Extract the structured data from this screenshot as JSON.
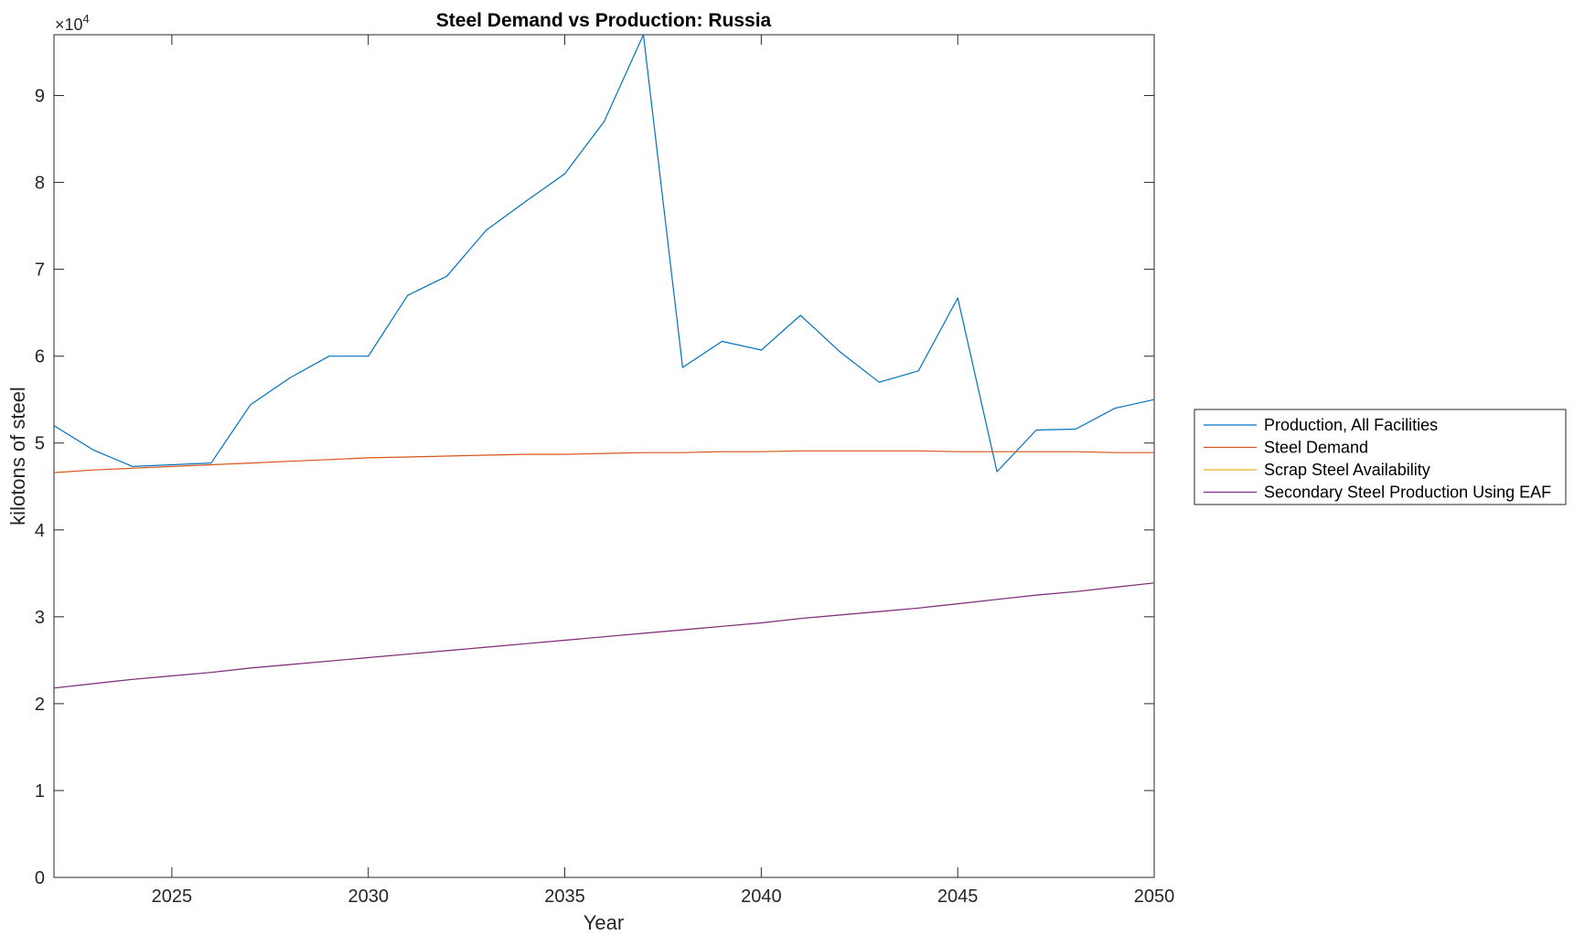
{
  "chart_data": {
    "type": "line",
    "title": "Steel Demand vs Production: Russia",
    "xlabel": "Year",
    "ylabel": "kilotons of steel",
    "y_exponent_label": "×10",
    "y_exponent_power": "4",
    "xlim": [
      2022,
      2050
    ],
    "ylim": [
      0,
      9.7
    ],
    "y_multiplier": 10000,
    "xticks": [
      2025,
      2030,
      2035,
      2040,
      2045,
      2050
    ],
    "xtick_labels": [
      "2025",
      "2030",
      "2035",
      "2040",
      "2045",
      "2050"
    ],
    "yticks": [
      0,
      1,
      2,
      3,
      4,
      5,
      6,
      7,
      8,
      9
    ],
    "ytick_labels": [
      "0",
      "1",
      "2",
      "3",
      "4",
      "5",
      "6",
      "7",
      "8",
      "9"
    ],
    "grid": false,
    "legend_position": "outside-right",
    "x": [
      2022,
      2023,
      2024,
      2025,
      2026,
      2027,
      2028,
      2029,
      2030,
      2031,
      2032,
      2033,
      2034,
      2035,
      2036,
      2037,
      2038,
      2039,
      2040,
      2041,
      2042,
      2043,
      2044,
      2045,
      2046,
      2047,
      2048,
      2049,
      2050
    ],
    "series": [
      {
        "name": "Production, All Facilities",
        "color": "#0072BD",
        "values": [
          5.2,
          4.92,
          4.73,
          4.75,
          4.77,
          5.44,
          5.75,
          6.0,
          6.0,
          6.7,
          6.92,
          7.45,
          7.78,
          8.1,
          8.7,
          9.7,
          5.87,
          6.17,
          6.07,
          6.47,
          6.05,
          5.7,
          5.83,
          6.67,
          4.67,
          5.15,
          5.16,
          5.4,
          5.5
        ]
      },
      {
        "name": "Steel Demand",
        "color": "#D95319",
        "values": [
          4.66,
          4.69,
          4.71,
          4.73,
          4.75,
          4.77,
          4.79,
          4.81,
          4.83,
          4.84,
          4.85,
          4.86,
          4.87,
          4.87,
          4.88,
          4.89,
          4.89,
          4.9,
          4.9,
          4.91,
          4.91,
          4.91,
          4.91,
          4.9,
          4.9,
          4.9,
          4.9,
          4.89,
          4.89
        ]
      },
      {
        "name": "Scrap Steel Availability",
        "color": "#EDB120",
        "values": [
          2.18,
          2.23,
          2.28,
          2.32,
          2.36,
          2.41,
          2.45,
          2.49,
          2.53,
          2.57,
          2.61,
          2.65,
          2.69,
          2.73,
          2.77,
          2.81,
          2.85,
          2.89,
          2.93,
          2.98,
          3.02,
          3.06,
          3.1,
          3.15,
          3.2,
          3.25,
          3.29,
          3.34,
          3.39
        ]
      },
      {
        "name": "Secondary Steel Production Using EAF",
        "color": "#7E2F8E",
        "values": [
          2.18,
          2.23,
          2.28,
          2.32,
          2.36,
          2.41,
          2.45,
          2.49,
          2.53,
          2.57,
          2.61,
          2.65,
          2.69,
          2.73,
          2.77,
          2.81,
          2.85,
          2.89,
          2.93,
          2.98,
          3.02,
          3.06,
          3.1,
          3.15,
          3.2,
          3.25,
          3.29,
          3.34,
          3.39
        ]
      }
    ]
  }
}
